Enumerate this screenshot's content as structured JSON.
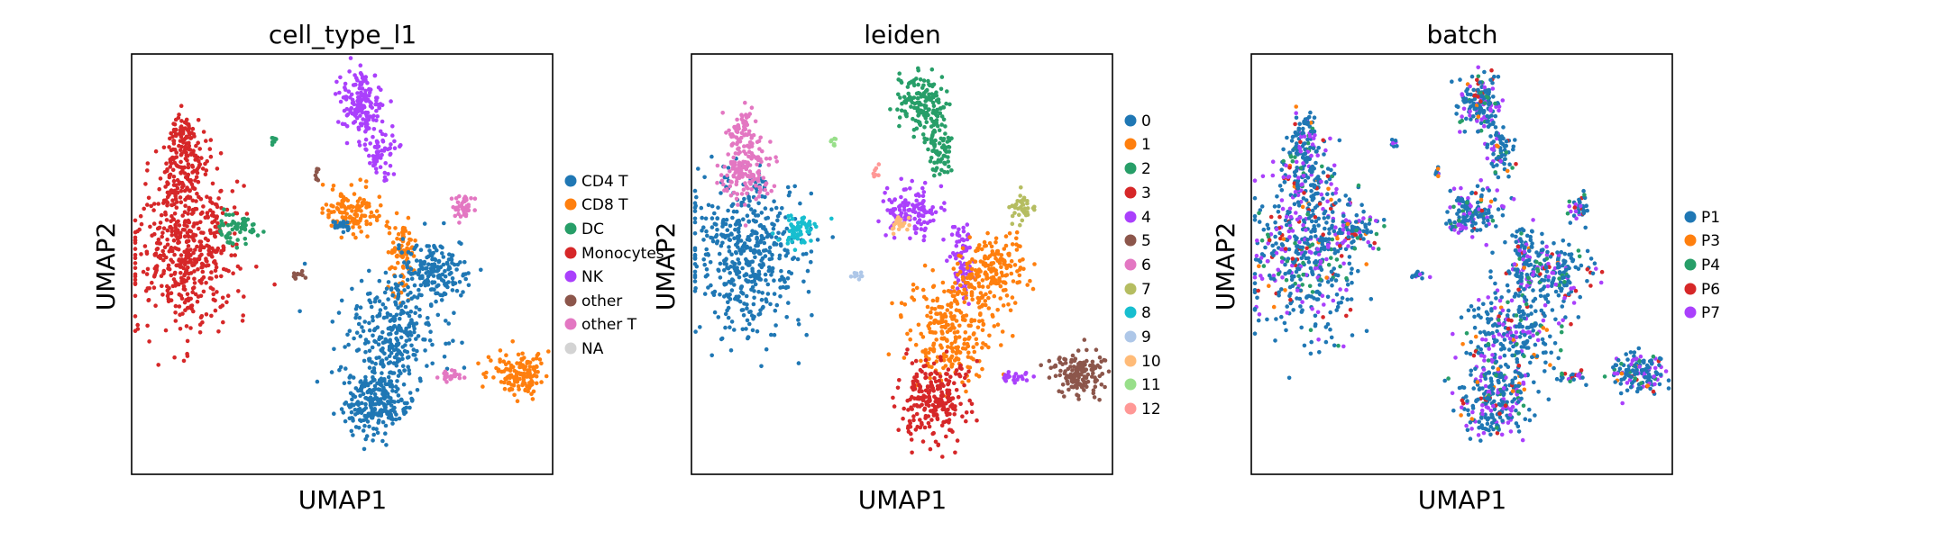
{
  "chart_data": [
    {
      "type": "scatter",
      "title": "cell_type_l1",
      "xlabel": "UMAP1",
      "ylabel": "UMAP2",
      "ticks": "none",
      "grid": false,
      "legend": {
        "placement": "right",
        "entries": [
          {
            "label": "CD4 T",
            "color": "#1f77b4"
          },
          {
            "label": "CD8 T",
            "color": "#ff7f0e"
          },
          {
            "label": "DC",
            "color": "#279e68"
          },
          {
            "label": "Monocytes",
            "color": "#d62728"
          },
          {
            "label": "NK",
            "color": "#aa40fc"
          },
          {
            "label": "other",
            "color": "#8c564b"
          },
          {
            "label": "other T",
            "color": "#e377c2"
          },
          {
            "label": "NA",
            "color": "#d3d3d3"
          }
        ]
      }
    },
    {
      "type": "scatter",
      "title": "leiden",
      "xlabel": "UMAP1",
      "ylabel": "UMAP2",
      "ticks": "none",
      "grid": false,
      "legend": {
        "placement": "right",
        "entries": [
          {
            "label": "0",
            "color": "#1f77b4"
          },
          {
            "label": "1",
            "color": "#ff7f0e"
          },
          {
            "label": "2",
            "color": "#279e68"
          },
          {
            "label": "3",
            "color": "#d62728"
          },
          {
            "label": "4",
            "color": "#aa40fc"
          },
          {
            "label": "5",
            "color": "#8c564b"
          },
          {
            "label": "6",
            "color": "#e377c2"
          },
          {
            "label": "7",
            "color": "#b5bd61"
          },
          {
            "label": "8",
            "color": "#17becf"
          },
          {
            "label": "9",
            "color": "#aec7e8"
          },
          {
            "label": "10",
            "color": "#ffbb78"
          },
          {
            "label": "11",
            "color": "#98df8a"
          },
          {
            "label": "12",
            "color": "#ff9896"
          }
        ]
      }
    },
    {
      "type": "scatter",
      "title": "batch",
      "xlabel": "UMAP1",
      "ylabel": "UMAP2",
      "ticks": "none",
      "grid": false,
      "legend": {
        "placement": "right",
        "entries": [
          {
            "label": "P1",
            "color": "#1f77b4"
          },
          {
            "label": "P3",
            "color": "#ff7f0e"
          },
          {
            "label": "P4",
            "color": "#279e68"
          },
          {
            "label": "P6",
            "color": "#d62728"
          },
          {
            "label": "P7",
            "color": "#aa40fc"
          }
        ]
      }
    }
  ]
}
